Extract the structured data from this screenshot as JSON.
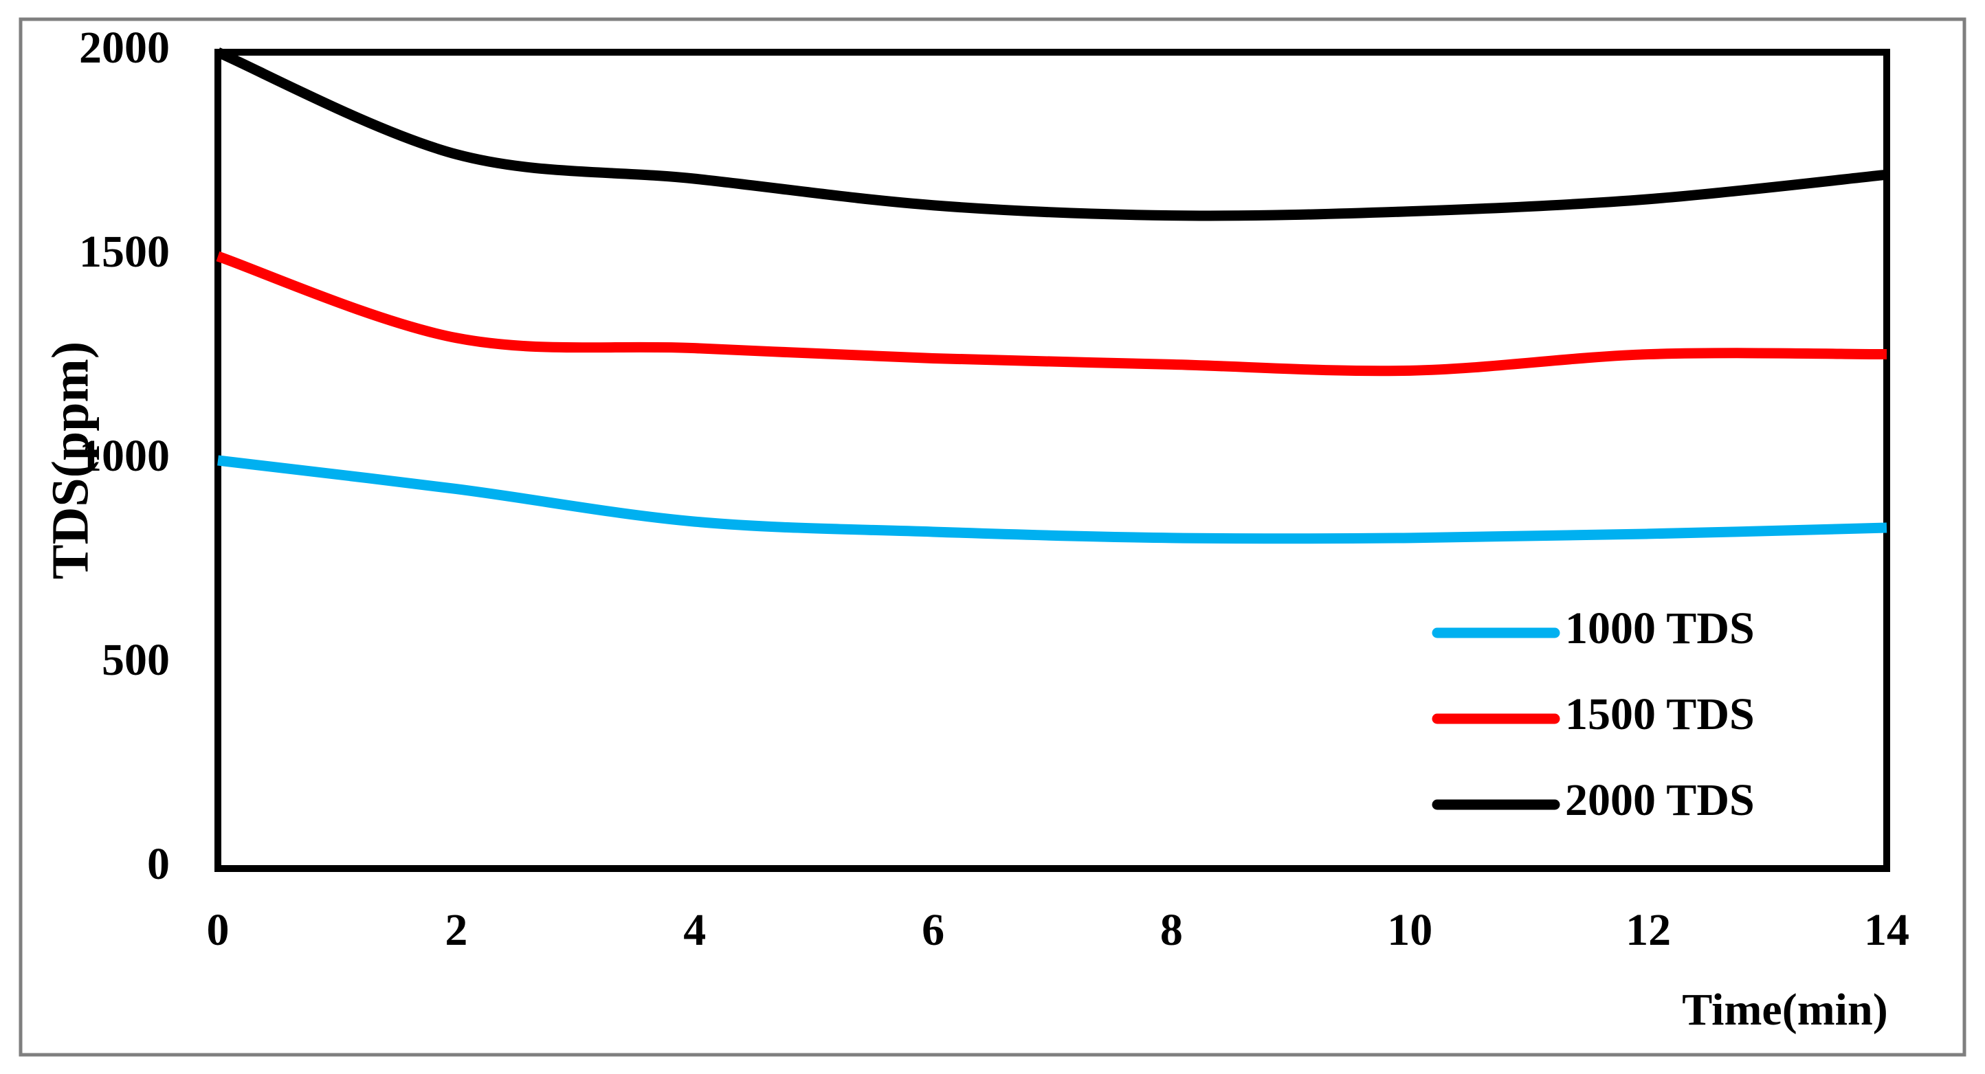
{
  "chart_data": {
    "type": "line",
    "x_label": "Time(min)",
    "y_label": "TDS(ppm)",
    "x": [
      0,
      2,
      4,
      6,
      8,
      10,
      12,
      14
    ],
    "series": [
      {
        "name": "1000 TDS",
        "color": "#00b0f0",
        "values": [
          1000,
          930,
          850,
          825,
          810,
          810,
          820,
          835
        ]
      },
      {
        "name": "1500 TDS",
        "color": "#ff0000",
        "values": [
          1500,
          1300,
          1275,
          1250,
          1235,
          1220,
          1260,
          1260
        ]
      },
      {
        "name": "2000 TDS",
        "color": "#000000",
        "values": [
          2000,
          1750,
          1690,
          1625,
          1600,
          1610,
          1640,
          1700
        ]
      }
    ],
    "xlim": [
      0,
      14
    ],
    "xticks": [
      0,
      2,
      4,
      6,
      8,
      10,
      12,
      14
    ],
    "ylim": [
      0,
      2000
    ],
    "yticks": [
      0,
      500,
      1000,
      1500,
      2000
    ],
    "grid": false,
    "legend": "lower right"
  }
}
